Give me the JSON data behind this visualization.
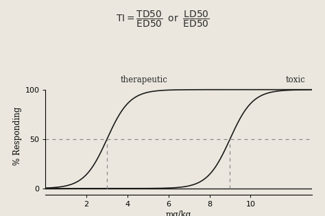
{
  "xlabel": "mg/kg",
  "ylabel": "% Responding",
  "xlim": [
    0.0,
    13.0
  ],
  "ylim": [
    -6,
    112
  ],
  "xticks": [
    2,
    4,
    6,
    8,
    10
  ],
  "yticks": [
    0,
    50,
    100
  ],
  "curve1_label": "therapeutic",
  "curve1_ec50": 3.0,
  "curve1_k": 1.8,
  "curve2_label": "toxic",
  "curve2_ec50": 9.0,
  "curve2_k": 1.8,
  "ed50_x": 3.0,
  "td50_x": 9.0,
  "hline_y": 50,
  "bg_color": "#ebe7de",
  "line_color": "#1a1a1a",
  "dashed_color": "#888888",
  "label_fontsize": 8.5,
  "axis_label_fontsize": 8.5,
  "tick_fontsize": 8,
  "formula_fontsize": 10
}
